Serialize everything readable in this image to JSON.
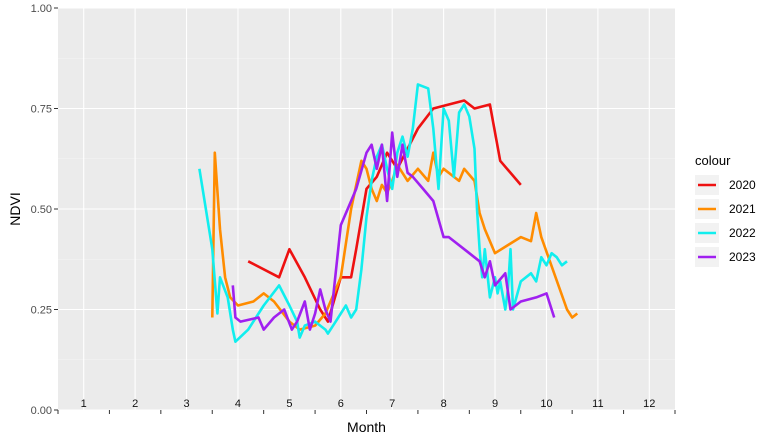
{
  "chart_data": {
    "type": "line",
    "title": "",
    "xlabel": "Month",
    "ylabel": "NDVI",
    "xlim": [
      0.5,
      12.5
    ],
    "ylim": [
      0,
      1
    ],
    "x_ticks": [
      "1",
      "2",
      "3",
      "4",
      "5",
      "6",
      "7",
      "8",
      "9",
      "10",
      "11",
      "12"
    ],
    "y_ticks": [
      "0.00",
      "0.25",
      "0.50",
      "0.75",
      "1.00"
    ],
    "grid": true,
    "legend": {
      "title": "colour",
      "placement": "right"
    },
    "series": [
      {
        "name": "2020",
        "color": "#ee1111",
        "points": [
          [
            4.2,
            0.37
          ],
          [
            4.8,
            0.33
          ],
          [
            5.0,
            0.4
          ],
          [
            5.3,
            0.33
          ],
          [
            5.6,
            0.25
          ],
          [
            5.75,
            0.22
          ],
          [
            6.0,
            0.33
          ],
          [
            6.2,
            0.33
          ],
          [
            6.3,
            0.4
          ],
          [
            6.5,
            0.55
          ],
          [
            6.7,
            0.58
          ],
          [
            6.9,
            0.64
          ],
          [
            7.1,
            0.6
          ],
          [
            7.3,
            0.65
          ],
          [
            7.5,
            0.7
          ],
          [
            7.8,
            0.75
          ],
          [
            8.1,
            0.76
          ],
          [
            8.4,
            0.77
          ],
          [
            8.6,
            0.75
          ],
          [
            8.9,
            0.76
          ],
          [
            9.1,
            0.62
          ],
          [
            9.5,
            0.56
          ]
        ]
      },
      {
        "name": "2021",
        "color": "#ff8c00",
        "points": [
          [
            3.5,
            0.23
          ],
          [
            3.55,
            0.64
          ],
          [
            3.65,
            0.45
          ],
          [
            3.75,
            0.33
          ],
          [
            3.85,
            0.28
          ],
          [
            4.0,
            0.26
          ],
          [
            4.3,
            0.27
          ],
          [
            4.5,
            0.29
          ],
          [
            4.7,
            0.27
          ],
          [
            5.0,
            0.22
          ],
          [
            5.2,
            0.2
          ],
          [
            5.5,
            0.21
          ],
          [
            5.7,
            0.24
          ],
          [
            5.9,
            0.3
          ],
          [
            6.0,
            0.33
          ],
          [
            6.2,
            0.5
          ],
          [
            6.4,
            0.62
          ],
          [
            6.5,
            0.6
          ],
          [
            6.6,
            0.55
          ],
          [
            6.7,
            0.52
          ],
          [
            6.8,
            0.56
          ],
          [
            6.9,
            0.54
          ],
          [
            7.0,
            0.57
          ],
          [
            7.1,
            0.61
          ],
          [
            7.3,
            0.57
          ],
          [
            7.5,
            0.6
          ],
          [
            7.7,
            0.57
          ],
          [
            7.8,
            0.64
          ],
          [
            7.9,
            0.58
          ],
          [
            8.0,
            0.6
          ],
          [
            8.3,
            0.57
          ],
          [
            8.4,
            0.6
          ],
          [
            8.6,
            0.57
          ],
          [
            8.7,
            0.49
          ],
          [
            8.8,
            0.45
          ],
          [
            9.0,
            0.39
          ],
          [
            9.5,
            0.43
          ],
          [
            9.7,
            0.42
          ],
          [
            9.8,
            0.49
          ],
          [
            9.9,
            0.43
          ],
          [
            10.4,
            0.25
          ],
          [
            10.5,
            0.23
          ],
          [
            10.6,
            0.24
          ]
        ]
      },
      {
        "name": "2022",
        "color": "#11eeee",
        "points": [
          [
            3.25,
            0.6
          ],
          [
            3.5,
            0.4
          ],
          [
            3.6,
            0.24
          ],
          [
            3.65,
            0.33
          ],
          [
            3.8,
            0.28
          ],
          [
            3.9,
            0.2
          ],
          [
            3.95,
            0.17
          ],
          [
            4.2,
            0.2
          ],
          [
            4.5,
            0.26
          ],
          [
            4.8,
            0.31
          ],
          [
            5.0,
            0.26
          ],
          [
            5.15,
            0.22
          ],
          [
            5.2,
            0.18
          ],
          [
            5.3,
            0.21
          ],
          [
            5.5,
            0.22
          ],
          [
            5.7,
            0.2
          ],
          [
            5.75,
            0.19
          ],
          [
            5.9,
            0.22
          ],
          [
            6.1,
            0.26
          ],
          [
            6.2,
            0.23
          ],
          [
            6.3,
            0.25
          ],
          [
            6.4,
            0.35
          ],
          [
            6.5,
            0.48
          ],
          [
            6.6,
            0.57
          ],
          [
            6.7,
            0.63
          ],
          [
            6.8,
            0.66
          ],
          [
            6.9,
            0.6
          ],
          [
            7.0,
            0.55
          ],
          [
            7.1,
            0.64
          ],
          [
            7.2,
            0.68
          ],
          [
            7.3,
            0.63
          ],
          [
            7.4,
            0.7
          ],
          [
            7.5,
            0.81
          ],
          [
            7.7,
            0.8
          ],
          [
            7.8,
            0.7
          ],
          [
            7.9,
            0.55
          ],
          [
            8.0,
            0.75
          ],
          [
            8.1,
            0.72
          ],
          [
            8.2,
            0.58
          ],
          [
            8.3,
            0.74
          ],
          [
            8.4,
            0.76
          ],
          [
            8.5,
            0.73
          ],
          [
            8.6,
            0.65
          ],
          [
            8.65,
            0.5
          ],
          [
            8.7,
            0.4
          ],
          [
            8.75,
            0.33
          ],
          [
            8.8,
            0.4
          ],
          [
            8.9,
            0.28
          ],
          [
            9.0,
            0.33
          ],
          [
            9.05,
            0.29
          ],
          [
            9.1,
            0.32
          ],
          [
            9.2,
            0.25
          ],
          [
            9.25,
            0.3
          ],
          [
            9.3,
            0.4
          ],
          [
            9.35,
            0.25
          ],
          [
            9.5,
            0.32
          ],
          [
            9.7,
            0.34
          ],
          [
            9.8,
            0.32
          ],
          [
            9.9,
            0.38
          ],
          [
            10.0,
            0.36
          ],
          [
            10.1,
            0.39
          ],
          [
            10.2,
            0.38
          ],
          [
            10.3,
            0.36
          ],
          [
            10.4,
            0.37
          ]
        ]
      },
      {
        "name": "2023",
        "color": "#a020f0",
        "points": [
          [
            3.9,
            0.31
          ],
          [
            3.95,
            0.23
          ],
          [
            4.05,
            0.22
          ],
          [
            4.4,
            0.23
          ],
          [
            4.5,
            0.2
          ],
          [
            4.7,
            0.23
          ],
          [
            4.9,
            0.25
          ],
          [
            5.05,
            0.2
          ],
          [
            5.15,
            0.22
          ],
          [
            5.3,
            0.27
          ],
          [
            5.4,
            0.2
          ],
          [
            5.5,
            0.24
          ],
          [
            5.6,
            0.3
          ],
          [
            5.7,
            0.25
          ],
          [
            5.8,
            0.22
          ],
          [
            6.0,
            0.46
          ],
          [
            6.2,
            0.52
          ],
          [
            6.3,
            0.55
          ],
          [
            6.5,
            0.64
          ],
          [
            6.6,
            0.66
          ],
          [
            6.7,
            0.6
          ],
          [
            6.8,
            0.66
          ],
          [
            6.9,
            0.52
          ],
          [
            7.0,
            0.69
          ],
          [
            7.1,
            0.58
          ],
          [
            7.2,
            0.66
          ],
          [
            7.3,
            0.59
          ],
          [
            7.4,
            0.58
          ],
          [
            7.6,
            0.55
          ],
          [
            7.8,
            0.52
          ],
          [
            8.0,
            0.43
          ],
          [
            8.1,
            0.43
          ],
          [
            8.5,
            0.39
          ],
          [
            8.7,
            0.37
          ],
          [
            8.8,
            0.33
          ],
          [
            8.9,
            0.37
          ],
          [
            9.0,
            0.31
          ],
          [
            9.2,
            0.34
          ],
          [
            9.3,
            0.25
          ],
          [
            9.5,
            0.27
          ],
          [
            9.8,
            0.28
          ],
          [
            10.0,
            0.29
          ],
          [
            10.15,
            0.23
          ]
        ]
      }
    ]
  }
}
